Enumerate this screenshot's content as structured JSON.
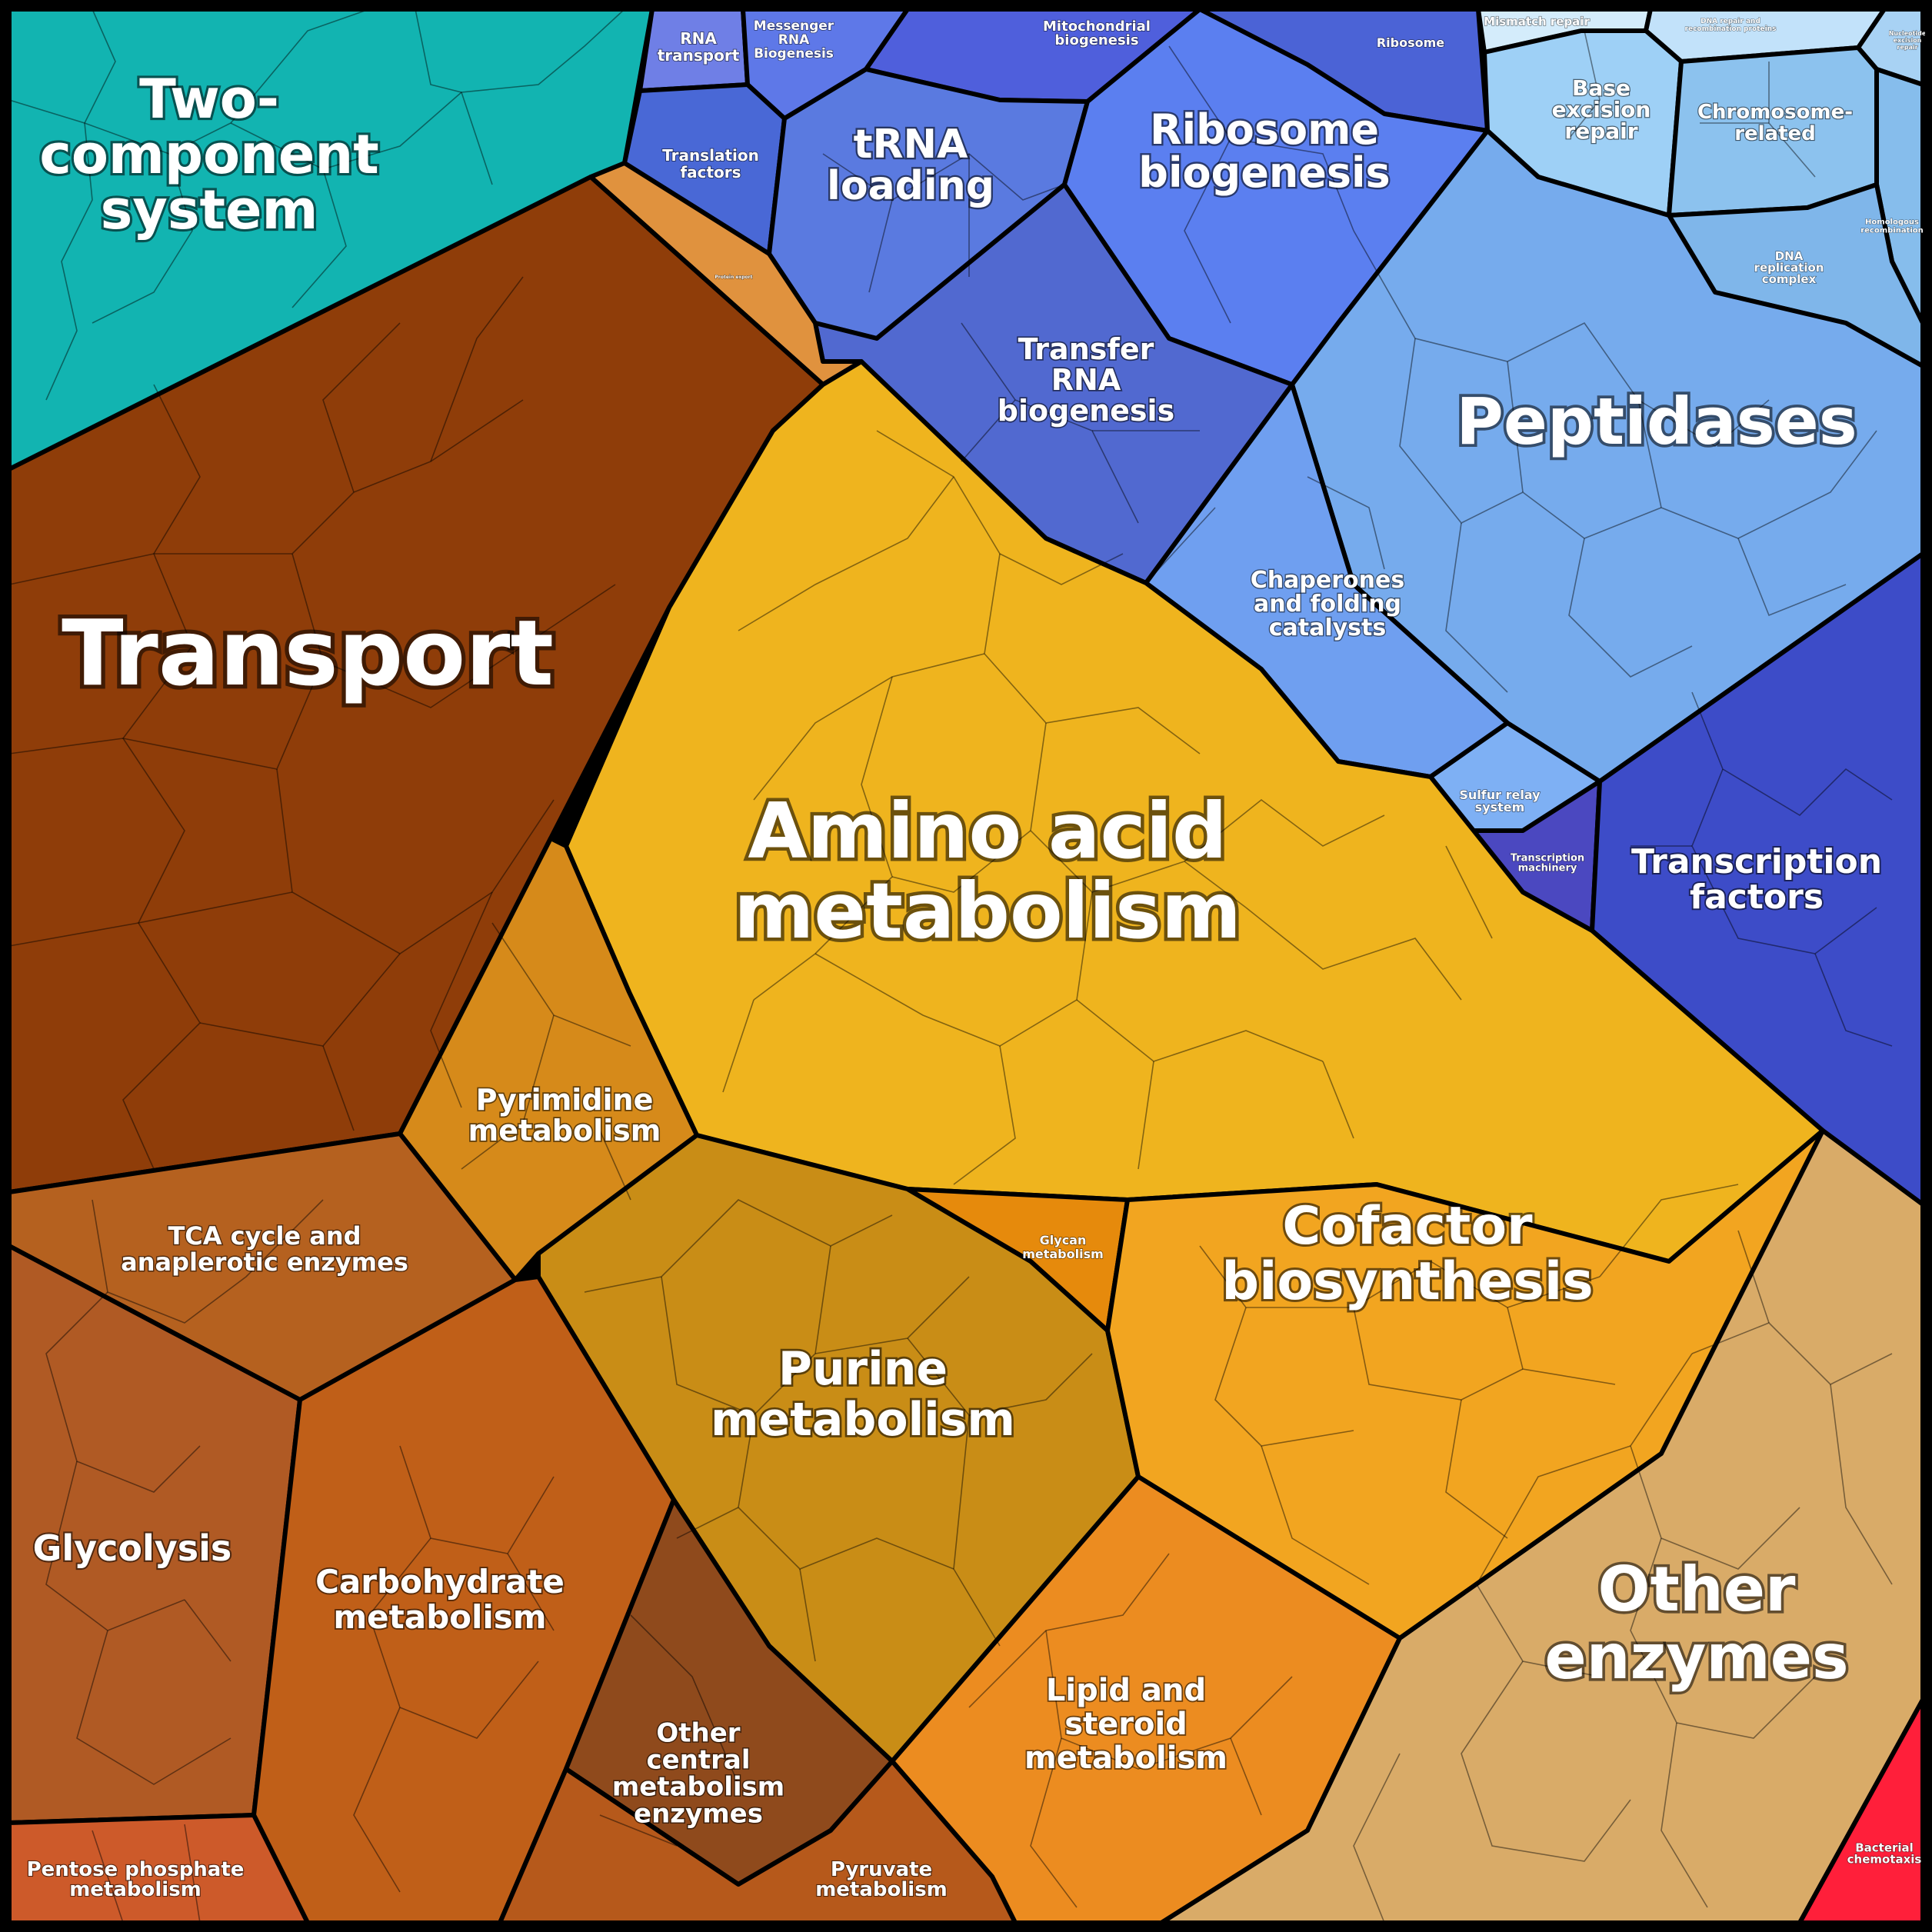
{
  "colors": {
    "two_component": "#11b5b3",
    "genetic_info": "#5574e0",
    "dna_repair": "#8ec6f0",
    "peptidases": "#74a8ec",
    "transcription": "#3d48c8",
    "transport": "#8e3d08",
    "transport_edge": "#d8883a",
    "amino_acid": "#efb21c",
    "nucleotide": "#d08f18",
    "cofactor": "#f5a822",
    "lipid": "#ed8d1e",
    "glycan": "#e6870e",
    "central_carbon": "#b55a1c",
    "other_enzymes": "#d9ab6a",
    "chemotaxis": "#ff1f3a",
    "border": "#000000",
    "label_text": "#ffffff"
  },
  "regions": [
    {
      "id": "two-component-system",
      "label": "Two-\ncomponent\nsystem",
      "color": "#12b4b1"
    },
    {
      "id": "rna-transport",
      "label": "RNA\ntransport",
      "color": "#6f7fe6"
    },
    {
      "id": "messenger-rna-biogenesis",
      "label": "Messenger\nRNA\nBiogenesis",
      "color": "#5e78e8"
    },
    {
      "id": "mitochondrial-biogenesis",
      "label": "Mitochondrial\nbiogenesis",
      "color": "#4f5fdc"
    },
    {
      "id": "ribosome",
      "label": "Ribosome",
      "color": "#4b63d6"
    },
    {
      "id": "translation-factors",
      "label": "Translation\nfactors",
      "color": "#4968d6"
    },
    {
      "id": "trna-loading",
      "label": "tRNA\nloading",
      "color": "#5a7ae0"
    },
    {
      "id": "ribosome-biogenesis",
      "label": "Ribosome\nbiogenesis",
      "color": "#5b7ff0"
    },
    {
      "id": "transfer-rna-biogenesis",
      "label": "Transfer\nRNA\nbiogenesis",
      "color": "#5169d0"
    },
    {
      "id": "mismatch-repair",
      "label": "Mismatch repair",
      "color": "#d4ecfb"
    },
    {
      "id": "dna-repair-recombination",
      "label": "DNA repair and\nrecombination proteins",
      "color": "#c2e2fa"
    },
    {
      "id": "nucleotide-excision-repair",
      "label": "Nucleotide\nexcision\nrepair",
      "color": "#a8d2f4"
    },
    {
      "id": "base-excision-repair",
      "label": "Base\nexcision\nrepair",
      "color": "#9ed0f6"
    },
    {
      "id": "chromosome-related",
      "label": "Chromosome-\nrelated",
      "color": "#8cc2ee"
    },
    {
      "id": "homologous-recombination",
      "label": "Homologous\nrecombination",
      "color": "#86bdec"
    },
    {
      "id": "dna-replication-complex",
      "label": "DNA\nreplication\ncomplex",
      "color": "#7fb6ea"
    },
    {
      "id": "peptidases",
      "label": "Peptidases",
      "color": "#76abed"
    },
    {
      "id": "chaperones",
      "label": "Chaperones\nand folding\ncatalysts",
      "color": "#6f9ff0"
    },
    {
      "id": "sulfur-relay-system",
      "label": "Sulfur relay\nsystem",
      "color": "#7eb0f4"
    },
    {
      "id": "transcription-machinery",
      "label": "Transcription\nmachinery",
      "color": "#4b48c0"
    },
    {
      "id": "transcription-factors",
      "label": "Transcription\nfactors",
      "color": "#3d4cc8"
    },
    {
      "id": "transport",
      "label": "Transport",
      "color": "#8f3d09"
    },
    {
      "id": "protein-export",
      "label": "Protein export",
      "color": "#e0923e"
    },
    {
      "id": "amino-acid-metabolism",
      "label": "Amino acid\nmetabolism",
      "color": "#efb41e"
    },
    {
      "id": "pyrimidine-metabolism",
      "label": "Pyrimidine\nmetabolism",
      "color": "#d68a1a"
    },
    {
      "id": "purine-metabolism",
      "label": "Purine\nmetabolism",
      "color": "#c98d16"
    },
    {
      "id": "glycan-metabolism",
      "label": "Glycan\nmetabolism",
      "color": "#e68a0c"
    },
    {
      "id": "cofactor-biosynthesis",
      "label": "Cofactor\nbiosynthesis",
      "color": "#f2a520"
    },
    {
      "id": "lipid-steroid-metabolism",
      "label": "Lipid and\nsteroid\nmetabolism",
      "color": "#ec8c20"
    },
    {
      "id": "tca-cycle",
      "label": "TCA cycle and\nanaplerotic enzymes",
      "color": "#b5611f"
    },
    {
      "id": "glycolysis",
      "label": "Glycolysis",
      "color": "#b05a24"
    },
    {
      "id": "carbohydrate-metabolism",
      "label": "Carbohydrate\nmetabolism",
      "color": "#c05f18"
    },
    {
      "id": "other-central-metabolism",
      "label": "Other\ncentral\nmetabolism\nenzymes",
      "color": "#8f4a1c"
    },
    {
      "id": "pentose-phosphate",
      "label": "Pentose phosphate\nmetabolism",
      "color": "#cd5a2a"
    },
    {
      "id": "pyruvate-metabolism",
      "label": "Pyruvate\nmetabolism",
      "color": "#b6591b"
    },
    {
      "id": "other-enzymes",
      "label": "Other\nenzymes",
      "color": "#d9ab68"
    },
    {
      "id": "bacterial-chemotaxis",
      "label": "Bacterial\nchemotaxis",
      "color": "#ff1f3a"
    }
  ]
}
